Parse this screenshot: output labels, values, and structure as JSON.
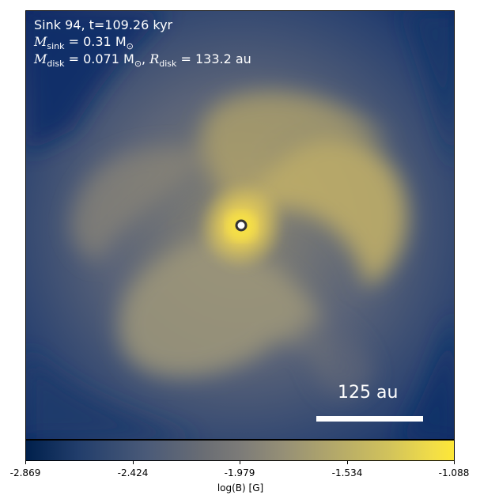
{
  "panel": {
    "sink_line": "Sink 94, t=109.26 kyr",
    "msink_var": "M",
    "msink_sub": "sink",
    "msink_value": " = 0.31 M",
    "msun_sub": "⊙",
    "mdisk_var": "M",
    "mdisk_sub": "disk",
    "mdisk_value": " = 0.071 M",
    "mdisk_sun_sub": "⊙",
    "rdisk_sep": ", ",
    "rdisk_var": "R",
    "rdisk_sub": "disk",
    "rdisk_value": " = 133.2 au"
  },
  "scalebar": {
    "label": "125 au"
  },
  "colorbar": {
    "label": "log(B) [G]",
    "ticks": [
      "-2.869",
      "-2.424",
      "-1.979",
      "-1.534",
      "-1.088"
    ],
    "colormap": "cividis",
    "min": -2.869,
    "max": -1.088
  },
  "colors": {
    "low": "#00204c",
    "mid": "#7c7b78",
    "high": "#fde737"
  }
}
